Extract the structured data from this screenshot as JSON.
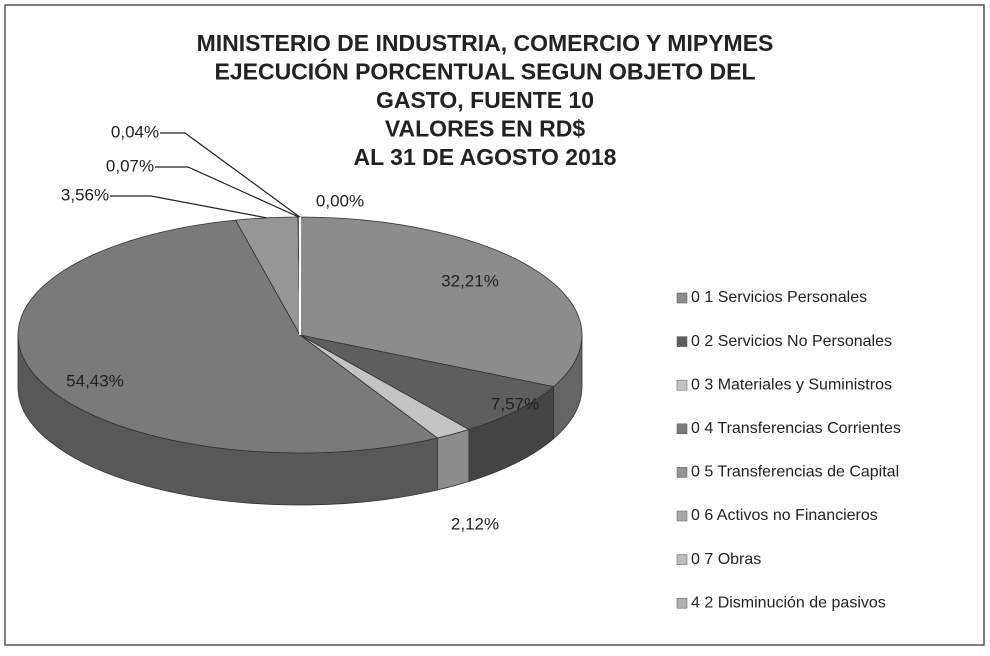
{
  "chart_data": {
    "type": "pie",
    "title": [
      "MINISTERIO DE INDUSTRIA,  COMERCIO Y MIPYMES",
      "EJECUCIÓN  PORCENTUAL  SEGUN OBJETO DEL",
      "GASTO,    FUENTE   10",
      "VALORES EN RD$",
      "AL  31  DE AGOSTO  2018"
    ],
    "categories": [
      "0 1  Servicios Personales",
      "0 2  Servicios No Personales",
      "0 3  Materiales y Suministros",
      "0 4  Transferencias Corrientes",
      "0 5  Transferencias de Capital",
      "0 6  Activos no Financieros",
      "0 7  Obras",
      "4 2  Disminución de pasivos"
    ],
    "values": [
      32.21,
      7.57,
      2.12,
      54.43,
      3.56,
      0.07,
      0.04,
      0.0
    ],
    "value_labels": [
      "32,21%",
      "7,57%",
      "2,12%",
      "54,43%",
      "3,56%",
      "0,07%",
      "0,04%",
      "0,00%"
    ],
    "colors": [
      "#8c8c8c",
      "#5e5e5e",
      "#c4c4c4",
      "#7a7a7a",
      "#969696",
      "#a8a8a8",
      "#bdbdbd",
      "#b0b0b0"
    ],
    "legend": "right"
  }
}
